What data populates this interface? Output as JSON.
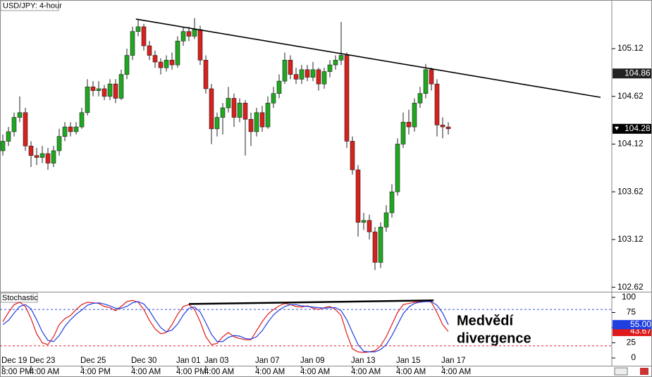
{
  "chart_data": [
    {
      "type": "candlestick",
      "title": "USD/JPY: 4-hour",
      "categories": [
        "Dec 19",
        null,
        null,
        null,
        null,
        "Dec 23",
        null,
        null,
        null,
        null,
        null,
        null,
        null,
        null,
        "Dec 25",
        null,
        null,
        null,
        null,
        null,
        null,
        null,
        null,
        "Dec 30",
        null,
        null,
        null,
        null,
        null,
        null,
        null,
        "Jan 01",
        null,
        null,
        null,
        null,
        "Jan 03",
        null,
        null,
        null,
        null,
        null,
        null,
        null,
        null,
        "Jan 07",
        null,
        null,
        null,
        null,
        null,
        null,
        null,
        "Jan 09",
        null,
        null,
        null,
        null,
        null,
        null,
        null,
        null,
        "Jan 13",
        null,
        null,
        null,
        null,
        null,
        null,
        null,
        "Jan 15",
        null,
        null,
        null,
        null,
        null,
        null,
        null,
        "Jan 17",
        null
      ],
      "category_times": [
        "8:00 PM",
        null,
        null,
        null,
        null,
        "4:00 AM",
        null,
        null,
        null,
        null,
        null,
        null,
        null,
        null,
        "4:00 PM",
        null,
        null,
        null,
        null,
        null,
        null,
        null,
        null,
        "4:00 AM",
        null,
        null,
        null,
        null,
        null,
        null,
        null,
        "4:00 PM",
        null,
        null,
        null,
        null,
        "4:00 AM",
        null,
        null,
        null,
        null,
        null,
        null,
        null,
        null,
        "4:00 AM",
        null,
        null,
        null,
        null,
        null,
        null,
        null,
        "4:00 AM",
        null,
        null,
        null,
        null,
        null,
        null,
        null,
        null,
        "4:00 AM",
        null,
        null,
        null,
        null,
        null,
        null,
        null,
        "4:00 AM",
        null,
        null,
        null,
        null,
        null,
        null,
        null,
        "4:00 AM",
        null
      ],
      "candles": [
        [
          104.05,
          104.22,
          104.0,
          104.15
        ],
        [
          104.15,
          104.3,
          104.1,
          104.25
        ],
        [
          104.25,
          104.45,
          104.2,
          104.4
        ],
        [
          104.4,
          104.62,
          104.35,
          104.45
        ],
        [
          104.45,
          104.5,
          104.05,
          104.1
        ],
        [
          104.1,
          104.15,
          103.88,
          104.0
        ],
        [
          104.0,
          104.08,
          103.9,
          103.98
        ],
        [
          103.98,
          104.1,
          103.92,
          104.02
        ],
        [
          104.02,
          104.08,
          103.85,
          103.92
        ],
        [
          103.92,
          104.1,
          103.88,
          104.05
        ],
        [
          104.05,
          104.28,
          104.0,
          104.2
        ],
        [
          104.2,
          104.35,
          104.15,
          104.3
        ],
        [
          104.3,
          104.35,
          104.2,
          104.25
        ],
        [
          104.25,
          104.35,
          104.22,
          104.3
        ],
        [
          104.3,
          104.5,
          104.28,
          104.45
        ],
        [
          104.45,
          104.8,
          104.42,
          104.72
        ],
        [
          104.72,
          104.78,
          104.62,
          104.68
        ],
        [
          104.68,
          104.78,
          104.62,
          104.7
        ],
        [
          104.7,
          104.74,
          104.58,
          104.62
        ],
        [
          104.62,
          104.8,
          104.58,
          104.75
        ],
        [
          104.75,
          104.8,
          104.55,
          104.6
        ],
        [
          104.6,
          104.9,
          104.58,
          104.85
        ],
        [
          104.85,
          105.12,
          104.8,
          105.05
        ],
        [
          105.05,
          105.35,
          105.0,
          105.3
        ],
        [
          105.3,
          105.43,
          105.25,
          105.35
        ],
        [
          105.35,
          105.38,
          105.1,
          105.15
        ],
        [
          105.15,
          105.2,
          105.0,
          105.05
        ],
        [
          105.05,
          105.1,
          104.92,
          104.98
        ],
        [
          104.98,
          105.02,
          104.85,
          104.92
        ],
        [
          104.92,
          105.05,
          104.88,
          105.0
        ],
        [
          105.0,
          105.08,
          104.9,
          104.95
        ],
        [
          104.95,
          105.25,
          104.92,
          105.2
        ],
        [
          105.2,
          105.35,
          105.15,
          105.3
        ],
        [
          105.3,
          105.35,
          105.2,
          105.25
        ],
        [
          105.25,
          105.44,
          105.22,
          105.32
        ],
        [
          105.32,
          105.36,
          104.95,
          105.0
        ],
        [
          105.0,
          105.05,
          104.65,
          104.7
        ],
        [
          104.7,
          104.75,
          104.12,
          104.28
        ],
        [
          104.28,
          104.45,
          104.2,
          104.4
        ],
        [
          104.4,
          104.55,
          104.22,
          104.5
        ],
        [
          104.5,
          104.72,
          104.45,
          104.6
        ],
        [
          104.6,
          104.65,
          104.3,
          104.4
        ],
        [
          104.4,
          104.6,
          104.35,
          104.55
        ],
        [
          104.55,
          104.58,
          104.0,
          104.38
        ],
        [
          104.38,
          104.45,
          104.1,
          104.25
        ],
        [
          104.25,
          104.5,
          104.2,
          104.45
        ],
        [
          104.45,
          104.52,
          104.25,
          104.3
        ],
        [
          104.3,
          104.62,
          104.28,
          104.55
        ],
        [
          104.55,
          104.72,
          104.5,
          104.65
        ],
        [
          104.65,
          104.85,
          104.6,
          104.78
        ],
        [
          104.78,
          105.08,
          104.75,
          105.0
        ],
        [
          105.0,
          105.05,
          104.8,
          104.85
        ],
        [
          104.85,
          104.92,
          104.75,
          104.8
        ],
        [
          104.8,
          104.95,
          104.75,
          104.9
        ],
        [
          104.9,
          104.95,
          104.78,
          104.82
        ],
        [
          104.82,
          104.98,
          104.78,
          104.9
        ],
        [
          104.9,
          104.92,
          104.68,
          104.75
        ],
        [
          104.75,
          104.92,
          104.7,
          104.88
        ],
        [
          104.88,
          105.0,
          104.82,
          104.95
        ],
        [
          104.95,
          105.05,
          104.9,
          105.0
        ],
        [
          105.0,
          105.4,
          104.95,
          105.05
        ],
        [
          105.05,
          105.08,
          104.08,
          104.15
        ],
        [
          104.15,
          104.2,
          103.8,
          103.85
        ],
        [
          103.85,
          103.9,
          103.15,
          103.3
        ],
        [
          103.3,
          103.4,
          103.22,
          103.32
        ],
        [
          103.32,
          103.38,
          103.12,
          103.2
        ],
        [
          103.2,
          103.25,
          102.8,
          102.88
        ],
        [
          102.88,
          103.3,
          102.82,
          103.25
        ],
        [
          103.25,
          103.48,
          103.2,
          103.4
        ],
        [
          103.4,
          103.7,
          103.35,
          103.62
        ],
        [
          103.62,
          104.18,
          103.58,
          104.12
        ],
        [
          104.12,
          104.45,
          104.08,
          104.35
        ],
        [
          104.35,
          104.48,
          104.22,
          104.3
        ],
        [
          104.3,
          104.6,
          104.25,
          104.55
        ],
        [
          104.55,
          104.72,
          104.5,
          104.65
        ],
        [
          104.65,
          104.96,
          104.6,
          104.9
        ],
        [
          104.9,
          104.92,
          104.68,
          104.75
        ],
        [
          104.75,
          104.8,
          104.2,
          104.32
        ],
        [
          104.32,
          104.4,
          104.18,
          104.3
        ],
        [
          104.3,
          104.35,
          104.22,
          104.28
        ]
      ],
      "up_color": "#1fa81f",
      "down_color": "#d8201c",
      "ylim": [
        102.58,
        105.63
      ],
      "yticks": [
        105.12,
        104.62,
        104.12,
        103.62,
        103.12,
        102.62
      ],
      "marker_price": 104.86,
      "trendline": {
        "x": [
          23.6,
          106
        ],
        "y": [
          105.43,
          104.61
        ]
      }
    },
    {
      "type": "line",
      "title": "Stochastic",
      "series": [
        {
          "color": "#e01a1a",
          "values": [
            60,
            75,
            88,
            92,
            85,
            65,
            40,
            25,
            22,
            35,
            55,
            65,
            70,
            80,
            88,
            92,
            91,
            90,
            85,
            83,
            78,
            85,
            93,
            95,
            92,
            80,
            62,
            48,
            40,
            42,
            55,
            72,
            85,
            88,
            80,
            60,
            35,
            22,
            24,
            35,
            42,
            35,
            32,
            30,
            30,
            45,
            60,
            72,
            80,
            86,
            90,
            88,
            85,
            84,
            86,
            82,
            80,
            83,
            85,
            80,
            70,
            40,
            15,
            10,
            9,
            10,
            12,
            20,
            35,
            55,
            75,
            88,
            90,
            92,
            93,
            95,
            92,
            75,
            55,
            43.67
          ],
          "last_value_label": "43.67"
        },
        {
          "color": "#1f3fe0",
          "values": [
            55,
            62,
            74,
            85,
            88,
            81,
            63,
            43,
            29,
            27,
            37,
            52,
            63,
            72,
            79,
            87,
            90,
            91,
            89,
            86,
            82,
            82,
            85,
            91,
            93,
            89,
            78,
            63,
            50,
            43,
            46,
            56,
            71,
            82,
            84,
            76,
            58,
            39,
            27,
            27,
            34,
            37,
            36,
            32,
            31,
            35,
            45,
            59,
            71,
            79,
            85,
            88,
            88,
            86,
            85,
            84,
            83,
            82,
            83,
            83,
            78,
            63,
            42,
            22,
            11,
            10,
            10,
            14,
            22,
            37,
            55,
            73,
            84,
            90,
            92,
            93,
            93,
            87,
            74,
            55
          ],
          "last_value_label": "55.00"
        }
      ],
      "ylim": [
        -12.8,
        108.1
      ],
      "yticks": [
        100,
        75,
        50,
        25,
        0
      ],
      "levels": [
        {
          "value": 80,
          "color": "#3050e0"
        },
        {
          "value": 20,
          "color": "#e02020"
        }
      ],
      "divergence_line": {
        "x": [
          33,
          76.4
        ],
        "y": [
          89,
          95
        ]
      },
      "annotation": [
        "Medvědí",
        "divergence"
      ]
    }
  ]
}
